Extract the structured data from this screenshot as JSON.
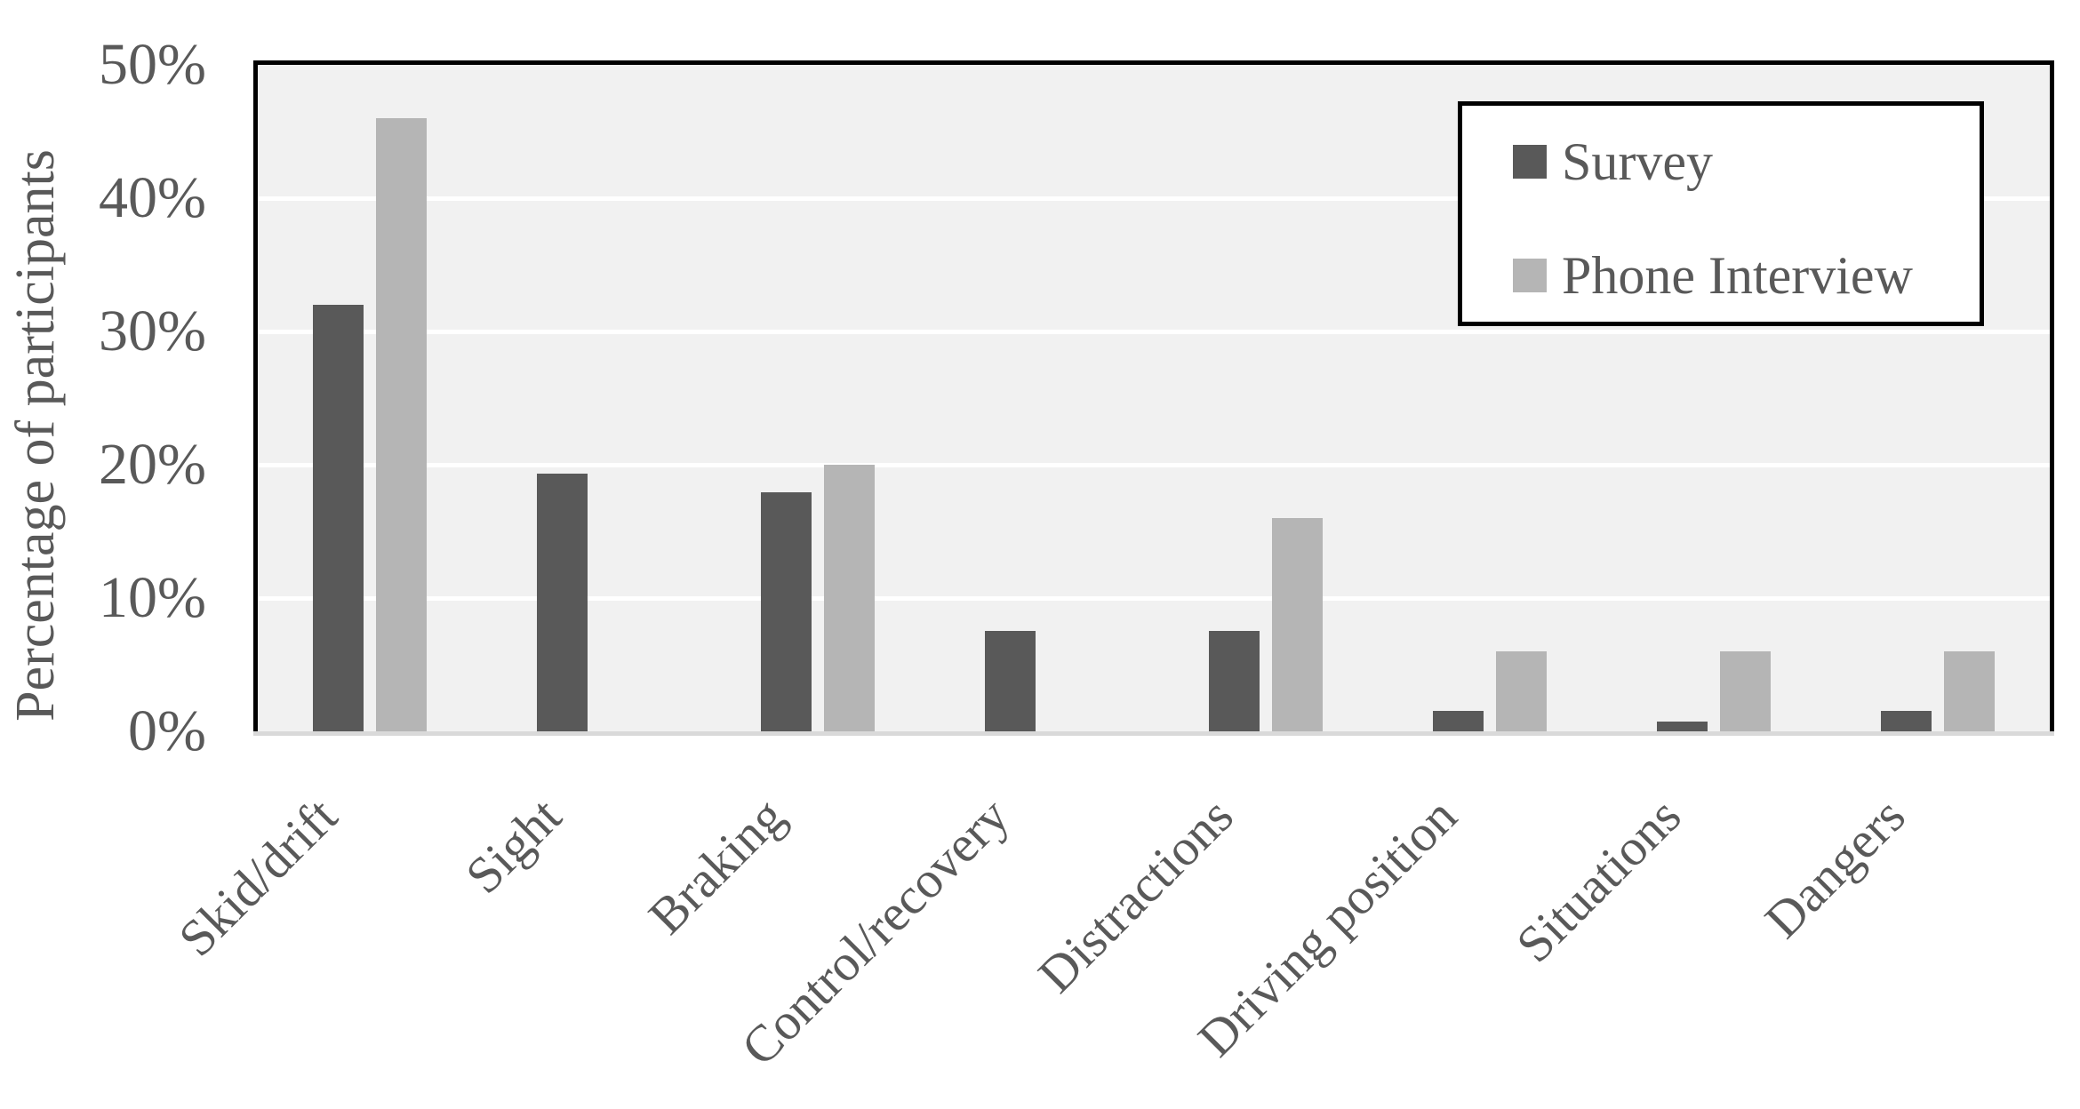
{
  "chart_data": {
    "type": "bar",
    "title": "",
    "categories": [
      "Skid/drift",
      "Sight",
      "Braking",
      "Control/recovery",
      "Distractions",
      "Driving position",
      "Situations",
      "Dangers"
    ],
    "series": [
      {
        "name": "Survey",
        "color": "#595959",
        "values": [
          32,
          19.3,
          17.9,
          7.5,
          7.5,
          1.5,
          0.7,
          1.5
        ]
      },
      {
        "name": "Phone Interview",
        "color": "#b5b5b5",
        "values": [
          46,
          0,
          20,
          0,
          16,
          6,
          6,
          6
        ]
      }
    ],
    "xlabel": "",
    "ylabel": "Percentage of participants",
    "unit": "%",
    "ylim": [
      0,
      50
    ],
    "yticks": [
      0,
      10,
      20,
      30,
      40,
      50
    ],
    "ytick_labels": [
      "0%",
      "10%",
      "20%",
      "30%",
      "40%",
      "50%"
    ],
    "grid": true,
    "legend_position": "top-right",
    "colors": {
      "plot_background": "#f1f1f1",
      "gridline": "#ffffff",
      "axis_border": "#000000",
      "baseline": "#d9d9d9",
      "text": "#595959",
      "legend_background": "#ffffff"
    }
  }
}
